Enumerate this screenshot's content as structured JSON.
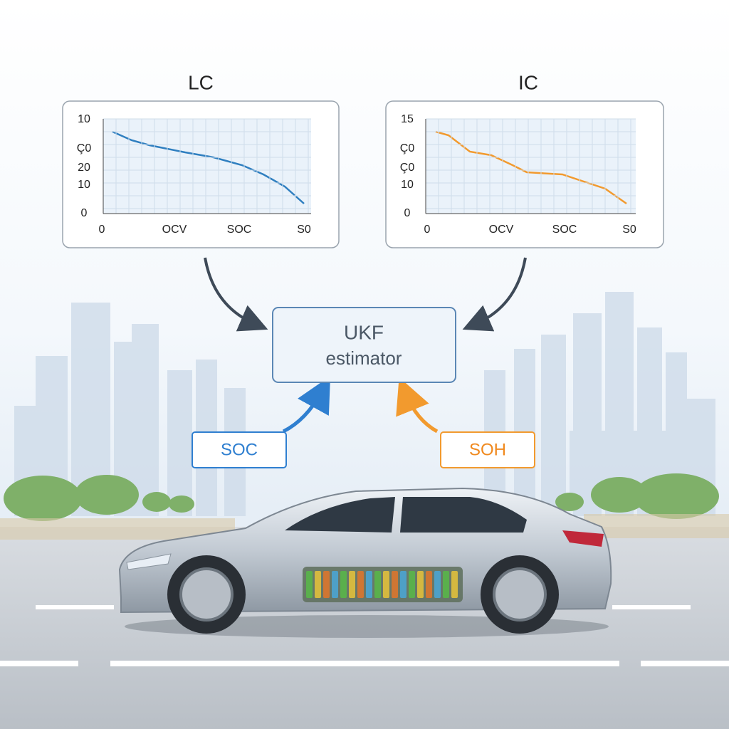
{
  "panels": [
    {
      "title": "LC",
      "y_tick_labels": [
        "10",
        "Ç0",
        "20",
        "10",
        "0"
      ],
      "x_tick_labels": [
        "0",
        "OCV",
        "SOC",
        "S0"
      ]
    },
    {
      "title": "IC",
      "y_tick_labels": [
        "15",
        "Ç0",
        "Ç0",
        "10",
        "0"
      ],
      "x_tick_labels": [
        "0",
        "OCV",
        "SOC",
        "S0"
      ]
    }
  ],
  "estimator": {
    "lines": [
      "UKF",
      "estimator"
    ]
  },
  "inputs": [
    {
      "label": "SOC"
    },
    {
      "label": "SOH"
    }
  ]
}
